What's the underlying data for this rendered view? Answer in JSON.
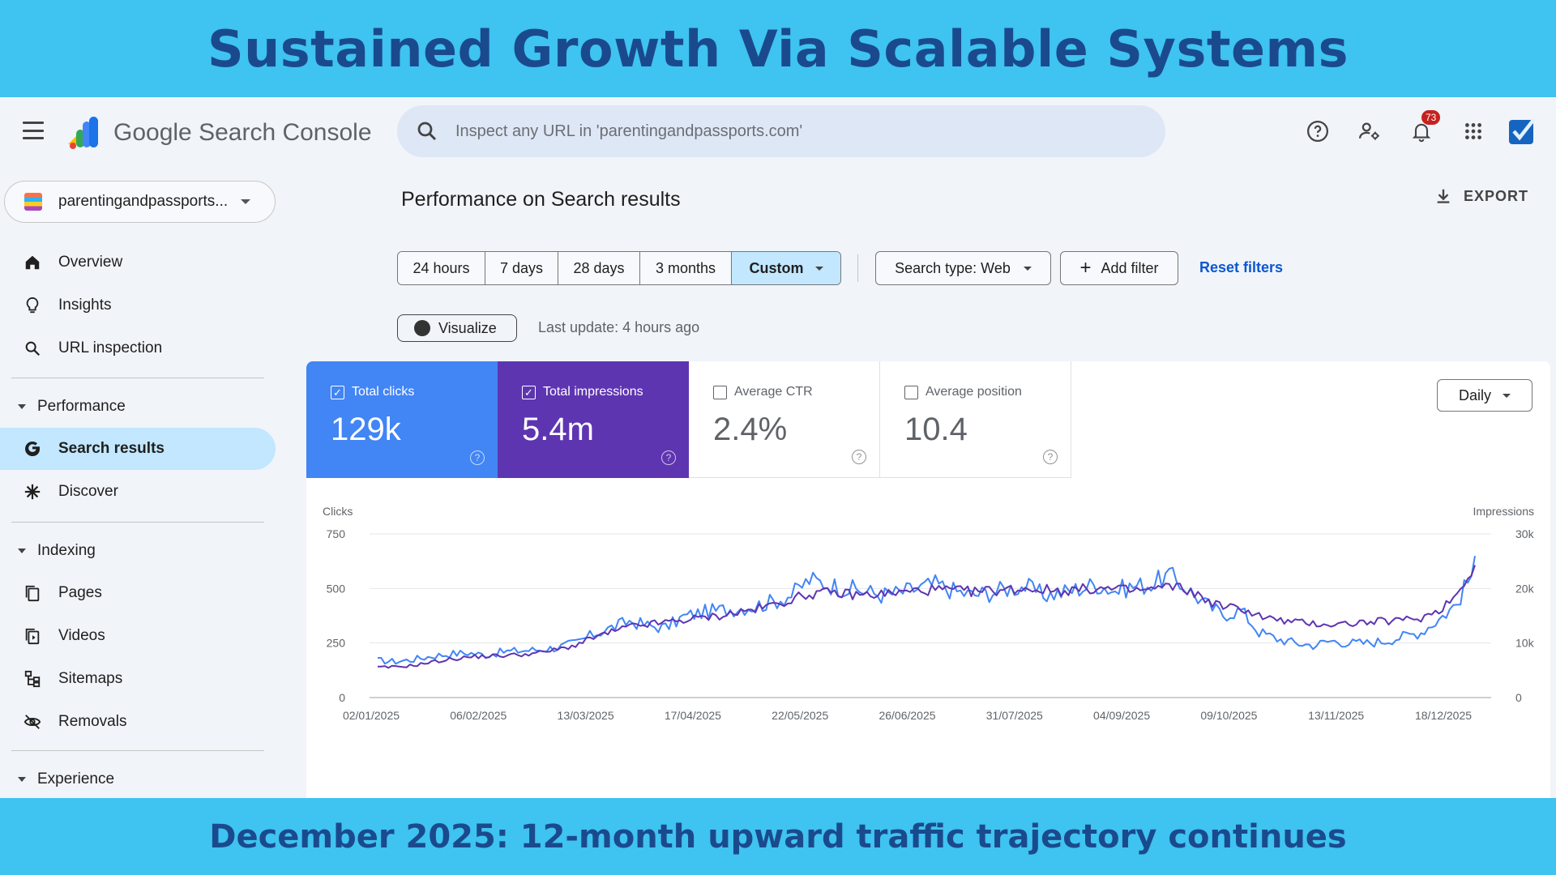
{
  "banner": {
    "title": "Sustained Growth Via Scalable Systems",
    "caption": "December 2025: 12-month upward traffic trajectory continues"
  },
  "header": {
    "brand": "Google Search Console",
    "search_placeholder": "Inspect any URL in 'parentingandpassports.com'",
    "notifications_count": "73",
    "icons": [
      "menu-icon",
      "help-icon",
      "manage-users-icon",
      "notifications-icon",
      "apps-grid-icon",
      "account-avatar-icon"
    ]
  },
  "sidebar": {
    "property": "parentingandpassports...",
    "items_top": [
      {
        "label": "Overview",
        "icon": "home-icon"
      },
      {
        "label": "Insights",
        "icon": "lightbulb-icon"
      },
      {
        "label": "URL inspection",
        "icon": "search-icon"
      }
    ],
    "performance": {
      "label": "Performance",
      "items": [
        {
          "label": "Search results",
          "icon": "google-g-icon",
          "active": true
        },
        {
          "label": "Discover",
          "icon": "asterisk-icon"
        }
      ]
    },
    "indexing": {
      "label": "Indexing",
      "items": [
        {
          "label": "Pages",
          "icon": "pages-icon"
        },
        {
          "label": "Videos",
          "icon": "videos-icon"
        },
        {
          "label": "Sitemaps",
          "icon": "sitemap-icon"
        },
        {
          "label": "Removals",
          "icon": "eye-off-icon"
        }
      ]
    },
    "experience": {
      "label": "Experience"
    }
  },
  "main": {
    "title": "Performance on Search results",
    "export_label": "EXPORT",
    "date_ranges": [
      "24 hours",
      "7 days",
      "28 days",
      "3 months",
      "Custom"
    ],
    "selected_range": "Custom",
    "search_type": "Search type: Web",
    "add_filter": "Add filter",
    "reset_filters": "Reset filters",
    "visualize": "Visualize",
    "last_update": "Last update: 4 hours ago"
  },
  "metrics": {
    "clicks": {
      "label": "Total clicks",
      "value": "129k",
      "checked": true,
      "color": "#4285f4"
    },
    "impressions": {
      "label": "Total impressions",
      "value": "5.4m",
      "checked": true,
      "color": "#5e35b1"
    },
    "ctr": {
      "label": "Average CTR",
      "value": "2.4%",
      "checked": false
    },
    "position": {
      "label": "Average position",
      "value": "10.4",
      "checked": false
    },
    "granularity": "Daily"
  },
  "chart_data": {
    "type": "line",
    "x_start": "2025-01-02",
    "x_end": "2025-12-30",
    "x_tick_labels": [
      "02/01/2025",
      "06/02/2025",
      "13/03/2025",
      "17/04/2025",
      "22/05/2025",
      "26/06/2025",
      "31/07/2025",
      "04/09/2025",
      "09/10/2025",
      "13/11/2025",
      "18/12/2025"
    ],
    "left_axis": {
      "label": "Clicks",
      "ticks": [
        "0",
        "250",
        "500",
        "750"
      ],
      "range": [
        0,
        750
      ]
    },
    "right_axis": {
      "label": "Impressions",
      "ticks": [
        "0",
        "10k",
        "20k",
        "30k"
      ],
      "range": [
        0,
        30000
      ]
    },
    "grid": true,
    "series": [
      {
        "name": "Clicks",
        "axis": "left",
        "color": "#4285f4",
        "weekly_values": [
          170,
          165,
          175,
          190,
          200,
          205,
          195,
          210,
          215,
          220,
          230,
          250,
          290,
          320,
          350,
          330,
          320,
          370,
          390,
          400,
          410,
          420,
          440,
          470,
          540,
          520,
          500,
          490,
          470,
          480,
          500,
          520,
          490,
          470,
          480,
          500,
          510,
          470,
          480,
          500,
          520,
          490,
          510,
          520,
          560,
          500,
          430,
          380,
          400,
          300,
          270,
          250,
          240,
          260,
          250,
          250,
          260,
          280,
          300,
          360,
          430,
          600
        ]
      },
      {
        "name": "Impressions",
        "axis": "right",
        "color": "#5e35b1",
        "weekly_values": [
          5500,
          5600,
          5900,
          6500,
          7000,
          7400,
          7600,
          7700,
          7900,
          8200,
          8800,
          9600,
          11000,
          12000,
          13000,
          13400,
          13800,
          14200,
          14600,
          15000,
          15600,
          16200,
          17000,
          18000,
          19000,
          19200,
          19000,
          18800,
          19000,
          19200,
          19600,
          19800,
          19600,
          19400,
          19600,
          19800,
          20000,
          19800,
          19600,
          19800,
          20000,
          19800,
          19600,
          19800,
          20400,
          19800,
          18000,
          16600,
          16400,
          15000,
          14200,
          13800,
          13600,
          13400,
          13600,
          13800,
          14000,
          14200,
          14600,
          16000,
          19000,
          24500
        ]
      }
    ]
  }
}
